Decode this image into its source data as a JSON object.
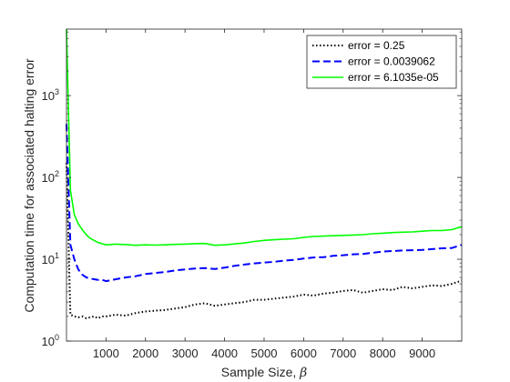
{
  "chart_data": {
    "type": "line",
    "title": "",
    "xlabel": "Sample Size, ",
    "xlabel_symbol": "β",
    "ylabel": "Computation time for associated halting error",
    "xlim": [
      1,
      10000
    ],
    "ylim": [
      1,
      6500
    ],
    "yscale": "log",
    "grid": false,
    "legend_position": "top-right",
    "x_ticks": [
      {
        "value": 1000,
        "label": "1000"
      },
      {
        "value": 2000,
        "label": "2000"
      },
      {
        "value": 3000,
        "label": "3000"
      },
      {
        "value": 4000,
        "label": "4000"
      },
      {
        "value": 5000,
        "label": "5000"
      },
      {
        "value": 6000,
        "label": "6000"
      },
      {
        "value": 7000,
        "label": "7000"
      },
      {
        "value": 8000,
        "label": "8000"
      },
      {
        "value": 9000,
        "label": "9000"
      }
    ],
    "y_ticks": [
      {
        "value": 1,
        "base": "10",
        "exp": "0"
      },
      {
        "value": 10,
        "base": "10",
        "exp": "1"
      },
      {
        "value": 100,
        "base": "10",
        "exp": "2"
      },
      {
        "value": 1000,
        "base": "10",
        "exp": "3"
      }
    ],
    "x": [
      1,
      100,
      200,
      300,
      400,
      500,
      600,
      700,
      800,
      900,
      1000,
      1250,
      1500,
      1750,
      2000,
      2250,
      2500,
      2750,
      3000,
      3250,
      3500,
      3750,
      4000,
      4250,
      4500,
      4750,
      5000,
      5250,
      5500,
      5750,
      6000,
      6250,
      6500,
      6750,
      7000,
      7250,
      7500,
      7750,
      8000,
      8250,
      8500,
      8750,
      9000,
      9250,
      9500,
      9750,
      10000
    ],
    "series": [
      {
        "name": "error = 0.25",
        "color": "#000000",
        "style": "dotted",
        "values": [
          150,
          2.1,
          2.0,
          1.95,
          2.0,
          1.9,
          1.95,
          2.0,
          1.9,
          2.0,
          2.0,
          2.1,
          2.05,
          2.2,
          2.3,
          2.35,
          2.4,
          2.5,
          2.6,
          2.8,
          2.9,
          2.7,
          2.8,
          2.9,
          3.0,
          3.2,
          3.2,
          3.3,
          3.4,
          3.5,
          3.7,
          3.6,
          3.8,
          3.9,
          4.1,
          4.2,
          3.9,
          4.1,
          4.3,
          4.2,
          4.6,
          4.4,
          4.6,
          4.8,
          4.7,
          5.0,
          5.5
        ]
      },
      {
        "name": "error = 0.0039062",
        "color": "#0000ff",
        "style": "dashed",
        "values": [
          450,
          15,
          10,
          7.5,
          6.5,
          6.0,
          5.8,
          5.7,
          5.6,
          5.6,
          5.4,
          5.7,
          6.0,
          6.2,
          6.6,
          6.8,
          7.0,
          7.3,
          7.5,
          7.7,
          7.8,
          7.6,
          7.9,
          8.3,
          8.6,
          8.9,
          9.1,
          9.3,
          9.6,
          9.8,
          10.2,
          10.5,
          10.6,
          11.0,
          11.2,
          11.5,
          11.6,
          12.0,
          12.4,
          12.6,
          12.8,
          12.9,
          13.0,
          13.3,
          13.6,
          13.7,
          15.0
        ]
      },
      {
        "name": "error = 6.1035e-05",
        "color": "#00ff00",
        "style": "solid",
        "values": [
          6500,
          70,
          35,
          27,
          23,
          20,
          18,
          17,
          16,
          15.5,
          15,
          15.3,
          15.1,
          14.8,
          15.0,
          14.9,
          15.0,
          15.2,
          15.3,
          15.5,
          15.6,
          14.8,
          15.0,
          15.4,
          15.8,
          16.5,
          17.0,
          17.3,
          17.6,
          17.8,
          18.5,
          19.0,
          19.2,
          19.4,
          19.6,
          19.8,
          20.0,
          20.5,
          20.8,
          21.2,
          21.4,
          21.6,
          22.0,
          22.4,
          22.5,
          23.0,
          25.0
        ]
      }
    ]
  }
}
